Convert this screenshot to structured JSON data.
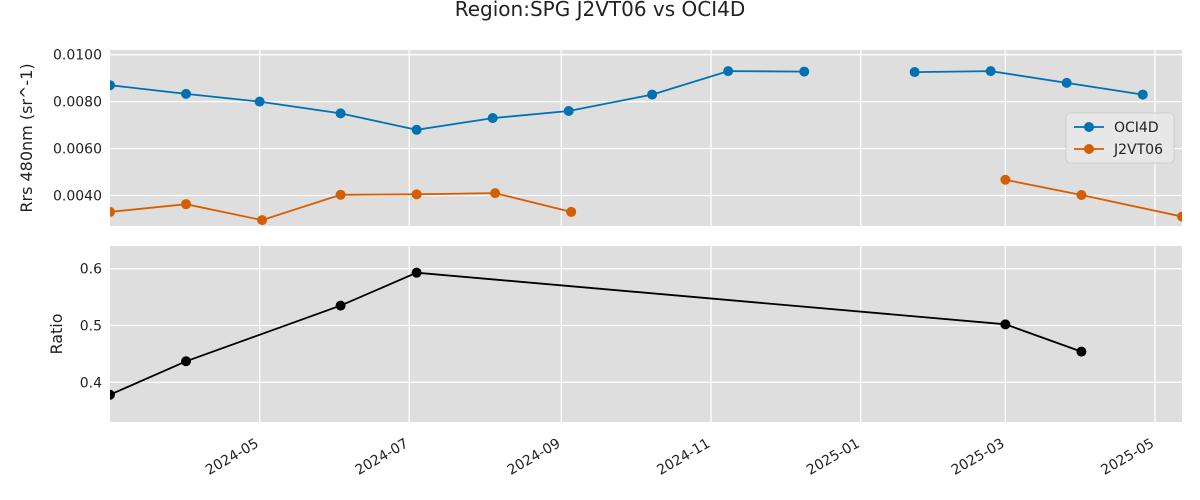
{
  "chart_data": {
    "title": "Region:SPG J2VT06 vs OCI4D",
    "type": "line",
    "x_type": "date",
    "xlim": [
      "2024-03-01",
      "2025-05-12"
    ],
    "x_ticks": [
      "2024-05-01",
      "2024-07-01",
      "2024-09-01",
      "2024-11-01",
      "2025-01-01",
      "2025-03-01",
      "2025-05-01"
    ],
    "x_tick_labels": [
      "2024-05",
      "2024-07",
      "2024-09",
      "2024-11",
      "2025-01",
      "2025-03",
      "2025-05"
    ],
    "grid": true,
    "panels": [
      {
        "ylabel": "Rrs 480nm (sr^-1)",
        "ylim": [
          0.0027,
          0.0102
        ],
        "y_ticks": [
          0.004,
          0.006,
          0.008,
          0.01
        ],
        "y_tick_labels": [
          "0.0040",
          "0.0060",
          "0.0080",
          "0.0100"
        ],
        "legend": "center-right",
        "series": [
          {
            "name": "OCI4D",
            "color": "#0072b2",
            "segments": [
              {
                "x": [
                  "2024-03-01",
                  "2024-04-01",
                  "2024-05-01",
                  "2024-06-03",
                  "2024-07-04",
                  "2024-08-04",
                  "2024-09-04",
                  "2024-10-08",
                  "2024-11-08",
                  "2024-12-09"
                ],
                "y": [
                  0.0087,
                  0.00833,
                  0.008,
                  0.0075,
                  0.0068,
                  0.0073,
                  0.0076,
                  0.0083,
                  0.0093,
                  0.00928
                ]
              },
              {
                "x": [
                  "2025-01-23",
                  "2025-02-23",
                  "2025-03-26",
                  "2025-04-26"
                ],
                "y": [
                  0.00926,
                  0.0093,
                  0.0088,
                  0.0083
                ]
              }
            ]
          },
          {
            "name": "J2VT06",
            "color": "#d55e00",
            "segments": [
              {
                "x": [
                  "2024-03-01",
                  "2024-04-01",
                  "2024-05-02",
                  "2024-06-03",
                  "2024-07-04",
                  "2024-08-05",
                  "2024-09-05"
                ],
                "y": [
                  0.0033,
                  0.00363,
                  0.00295,
                  0.00403,
                  0.00405,
                  0.0041,
                  0.0033
                ]
              },
              {
                "x": [
                  "2025-03-01",
                  "2025-04-01",
                  "2025-05-12"
                ],
                "y": [
                  0.00467,
                  0.00402,
                  0.0031
                ]
              }
            ]
          }
        ]
      },
      {
        "ylabel": "Ratio",
        "ylim": [
          0.33,
          0.64
        ],
        "y_ticks": [
          0.4,
          0.5,
          0.6
        ],
        "y_tick_labels": [
          "0.4",
          "0.5",
          "0.6"
        ],
        "series": [
          {
            "color": "#000000",
            "segments": [
              {
                "x": [
                  "2024-03-01",
                  "2024-04-01",
                  "2024-06-03",
                  "2024-07-04",
                  "2025-03-01",
                  "2025-04-01"
                ],
                "y": [
                  0.378,
                  0.437,
                  0.535,
                  0.593,
                  0.502,
                  0.454
                ]
              }
            ]
          }
        ]
      }
    ]
  }
}
